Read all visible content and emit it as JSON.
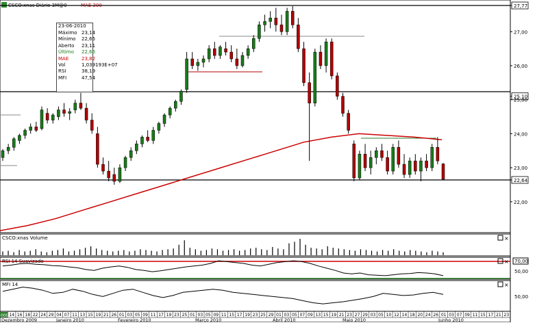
{
  "header": {
    "instrument": "CSCO:xnas Diário 3M@0",
    "overlay_label": "MAE 200",
    "icon": "chart-window-icon"
  },
  "info_box": {
    "date": "23-06-2010",
    "rows": [
      {
        "label": "Máximo",
        "value": "23,14",
        "color": "#000000"
      },
      {
        "label": "Mínimo",
        "value": "22,65",
        "color": "#000000"
      },
      {
        "label": "Aberto",
        "value": "23,11",
        "color": "#000000"
      },
      {
        "label": "Último",
        "value": "22,66",
        "color": "#1a7a1a"
      },
      {
        "label": "MAE",
        "value": "23,82",
        "color": "#cc0000"
      },
      {
        "label": "Vol",
        "value": "1,039193E+07",
        "color": "#000000"
      },
      {
        "label": "RSI",
        "value": "38,19",
        "color": "#000000"
      },
      {
        "label": "MFI",
        "value": "47,54",
        "color": "#000000"
      }
    ]
  },
  "panels": {
    "volume_title": "CSCO:xnas Volume",
    "rsi_title": "RSI 14 Suavizado",
    "mfi_title": "MFI 14",
    "rsi_level_label": "70,00",
    "rsi_mid_label": "50,00",
    "mfi_mid_label": "50,00"
  },
  "price_axis": {
    "labels": [
      "27,77",
      "27,00",
      "26,00",
      "25,10",
      "25,00",
      "24,00",
      "23,00",
      "22,64",
      "22,00"
    ],
    "top_highlight": "27,77",
    "hl_1": "25,10",
    "hl_2": "22,64"
  },
  "time_axis": {
    "days": [
      "09",
      "14",
      "16",
      "18",
      "22",
      "24",
      "29",
      "04",
      "07",
      "11",
      "13",
      "15",
      "19",
      "21",
      "26",
      "01",
      "03",
      "05",
      "09",
      "11",
      "17",
      "19",
      "23",
      "25",
      "01",
      "03",
      "05",
      "09",
      "11",
      "15",
      "17",
      "19",
      "23",
      "25",
      "29",
      "01",
      "03",
      "05",
      "07",
      "09",
      "13",
      "15",
      "19",
      "21",
      "23",
      "27",
      "29",
      "03",
      "05",
      "10",
      "12",
      "14",
      "18",
      "20",
      "24",
      "26",
      "01",
      "03",
      "07",
      "09",
      "11",
      "15",
      "17",
      "21",
      "23"
    ],
    "months": [
      "Dezembro 2009",
      "Janeiro 2010",
      "Fevereiro 2010",
      "Março 2010",
      "Abril 2010",
      "Maio 2010",
      "Junho 2010"
    ],
    "first_day": "009"
  },
  "colors": {
    "up": "#1a7a1a",
    "down": "#b00000",
    "mae": "#cc0000",
    "rsi_line": "#cc0000",
    "mfi_line": "#2e7d2e"
  },
  "chart_data": {
    "type": "candlestick",
    "title": "CSCO:xnas Diário 3M@0",
    "ylim": [
      21.0,
      27.8
    ],
    "horizontal_lines": [
      25.1,
      22.64
    ],
    "mae_200": [
      21.15,
      21.3,
      21.5,
      21.75,
      22.0,
      22.25,
      22.5,
      22.75,
      23.0,
      23.25,
      23.5,
      23.75,
      23.9,
      24.0,
      23.95,
      23.9,
      23.82
    ],
    "candles": [
      {
        "o": 23.3,
        "h": 23.55,
        "l": 23.2,
        "c": 23.5
      },
      {
        "o": 23.5,
        "h": 23.7,
        "l": 23.4,
        "c": 23.6
      },
      {
        "o": 23.6,
        "h": 23.9,
        "l": 23.5,
        "c": 23.85
      },
      {
        "o": 23.8,
        "h": 24.0,
        "l": 23.7,
        "c": 23.95
      },
      {
        "o": 23.95,
        "h": 24.15,
        "l": 23.85,
        "c": 24.1
      },
      {
        "o": 24.1,
        "h": 24.3,
        "l": 24.0,
        "c": 24.2
      },
      {
        "o": 24.2,
        "h": 24.35,
        "l": 24.05,
        "c": 24.1
      },
      {
        "o": 24.15,
        "h": 24.8,
        "l": 24.1,
        "c": 24.7
      },
      {
        "o": 24.6,
        "h": 24.75,
        "l": 24.3,
        "c": 24.4
      },
      {
        "o": 24.4,
        "h": 24.6,
        "l": 24.3,
        "c": 24.55
      },
      {
        "o": 24.5,
        "h": 24.8,
        "l": 24.4,
        "c": 24.7
      },
      {
        "o": 24.7,
        "h": 24.9,
        "l": 24.5,
        "c": 24.6
      },
      {
        "o": 24.6,
        "h": 24.75,
        "l": 24.4,
        "c": 24.65
      },
      {
        "o": 24.7,
        "h": 25.0,
        "l": 24.6,
        "c": 24.9
      },
      {
        "o": 24.9,
        "h": 25.2,
        "l": 24.7,
        "c": 24.75
      },
      {
        "o": 24.75,
        "h": 24.9,
        "l": 24.3,
        "c": 24.4
      },
      {
        "o": 24.4,
        "h": 24.6,
        "l": 24.0,
        "c": 24.1
      },
      {
        "o": 24.0,
        "h": 24.2,
        "l": 23.0,
        "c": 23.1
      },
      {
        "o": 23.1,
        "h": 23.3,
        "l": 22.8,
        "c": 22.9
      },
      {
        "o": 22.9,
        "h": 23.2,
        "l": 22.6,
        "c": 22.7
      },
      {
        "o": 22.8,
        "h": 23.0,
        "l": 22.5,
        "c": 22.6
      },
      {
        "o": 22.6,
        "h": 23.1,
        "l": 22.55,
        "c": 23.0
      },
      {
        "o": 23.0,
        "h": 23.35,
        "l": 22.9,
        "c": 23.3
      },
      {
        "o": 23.3,
        "h": 23.6,
        "l": 23.2,
        "c": 23.5
      },
      {
        "o": 23.5,
        "h": 23.8,
        "l": 23.4,
        "c": 23.7
      },
      {
        "o": 23.7,
        "h": 23.95,
        "l": 23.6,
        "c": 23.9
      },
      {
        "o": 23.9,
        "h": 24.1,
        "l": 23.75,
        "c": 23.8
      },
      {
        "o": 23.8,
        "h": 24.2,
        "l": 23.7,
        "c": 24.1
      },
      {
        "o": 24.1,
        "h": 24.35,
        "l": 24.0,
        "c": 24.3
      },
      {
        "o": 24.3,
        "h": 24.6,
        "l": 24.2,
        "c": 24.55
      },
      {
        "o": 24.55,
        "h": 24.8,
        "l": 24.45,
        "c": 24.75
      },
      {
        "o": 24.75,
        "h": 25.0,
        "l": 24.65,
        "c": 24.95
      },
      {
        "o": 24.95,
        "h": 25.3,
        "l": 24.85,
        "c": 25.25
      },
      {
        "o": 25.3,
        "h": 26.4,
        "l": 25.2,
        "c": 26.2
      },
      {
        "o": 26.2,
        "h": 26.4,
        "l": 25.9,
        "c": 26.0
      },
      {
        "o": 26.0,
        "h": 26.2,
        "l": 25.85,
        "c": 26.1
      },
      {
        "o": 26.1,
        "h": 26.3,
        "l": 25.95,
        "c": 26.2
      },
      {
        "o": 26.2,
        "h": 26.6,
        "l": 26.1,
        "c": 26.5
      },
      {
        "o": 26.5,
        "h": 26.7,
        "l": 26.2,
        "c": 26.3
      },
      {
        "o": 26.3,
        "h": 26.6,
        "l": 26.2,
        "c": 26.55
      },
      {
        "o": 26.5,
        "h": 26.7,
        "l": 26.3,
        "c": 26.4
      },
      {
        "o": 26.4,
        "h": 26.6,
        "l": 26.1,
        "c": 26.2
      },
      {
        "o": 26.2,
        "h": 26.5,
        "l": 25.9,
        "c": 26.0
      },
      {
        "o": 26.0,
        "h": 26.4,
        "l": 25.95,
        "c": 26.3
      },
      {
        "o": 26.3,
        "h": 26.6,
        "l": 26.2,
        "c": 26.5
      },
      {
        "o": 26.5,
        "h": 26.9,
        "l": 26.4,
        "c": 26.8
      },
      {
        "o": 26.8,
        "h": 27.3,
        "l": 26.7,
        "c": 27.2
      },
      {
        "o": 27.2,
        "h": 27.5,
        "l": 27.0,
        "c": 27.3
      },
      {
        "o": 27.3,
        "h": 27.6,
        "l": 27.1,
        "c": 27.4
      },
      {
        "o": 27.4,
        "h": 27.7,
        "l": 27.0,
        "c": 27.2
      },
      {
        "o": 27.2,
        "h": 27.5,
        "l": 26.9,
        "c": 27.0
      },
      {
        "o": 27.0,
        "h": 27.7,
        "l": 26.9,
        "c": 27.6
      },
      {
        "o": 27.6,
        "h": 27.75,
        "l": 27.1,
        "c": 27.2
      },
      {
        "o": 27.2,
        "h": 27.4,
        "l": 26.4,
        "c": 26.5
      },
      {
        "o": 26.5,
        "h": 26.7,
        "l": 25.4,
        "c": 25.5
      },
      {
        "o": 25.5,
        "h": 25.8,
        "l": 23.2,
        "c": 24.9
      },
      {
        "o": 24.9,
        "h": 26.5,
        "l": 24.8,
        "c": 26.4
      },
      {
        "o": 26.4,
        "h": 26.6,
        "l": 25.9,
        "c": 26.0
      },
      {
        "o": 26.0,
        "h": 26.8,
        "l": 25.8,
        "c": 26.7
      },
      {
        "o": 26.7,
        "h": 26.8,
        "l": 25.6,
        "c": 25.7
      },
      {
        "o": 25.7,
        "h": 25.8,
        "l": 25.0,
        "c": 25.1
      },
      {
        "o": 25.1,
        "h": 25.2,
        "l": 24.5,
        "c": 24.6
      },
      {
        "o": 24.6,
        "h": 24.7,
        "l": 24.0,
        "c": 24.1
      },
      {
        "o": 23.7,
        "h": 23.8,
        "l": 22.6,
        "c": 22.7
      },
      {
        "o": 22.7,
        "h": 23.5,
        "l": 22.65,
        "c": 23.4
      },
      {
        "o": 23.4,
        "h": 23.7,
        "l": 22.9,
        "c": 23.0
      },
      {
        "o": 23.0,
        "h": 23.5,
        "l": 22.8,
        "c": 23.3
      },
      {
        "o": 23.3,
        "h": 23.6,
        "l": 23.1,
        "c": 23.5
      },
      {
        "o": 23.5,
        "h": 23.7,
        "l": 23.2,
        "c": 23.3
      },
      {
        "o": 23.3,
        "h": 23.5,
        "l": 22.8,
        "c": 22.9
      },
      {
        "o": 22.9,
        "h": 23.7,
        "l": 22.8,
        "c": 23.6
      },
      {
        "o": 23.6,
        "h": 23.8,
        "l": 23.0,
        "c": 23.1
      },
      {
        "o": 23.1,
        "h": 23.4,
        "l": 22.7,
        "c": 22.8
      },
      {
        "o": 22.8,
        "h": 23.3,
        "l": 22.7,
        "c": 23.2
      },
      {
        "o": 23.2,
        "h": 23.4,
        "l": 22.8,
        "c": 22.9
      },
      {
        "o": 22.9,
        "h": 23.3,
        "l": 22.6,
        "c": 23.2
      },
      {
        "o": 23.2,
        "h": 23.4,
        "l": 22.9,
        "c": 23.0
      },
      {
        "o": 23.0,
        "h": 23.7,
        "l": 22.9,
        "c": 23.6
      },
      {
        "o": 23.6,
        "h": 23.9,
        "l": 23.1,
        "c": 23.2
      },
      {
        "o": 23.11,
        "h": 23.14,
        "l": 22.65,
        "c": 22.66
      }
    ],
    "volume": [
      5,
      6,
      4,
      7,
      5,
      6,
      8,
      5,
      4,
      6,
      7,
      9,
      5,
      6,
      8,
      10,
      12,
      9,
      7,
      6,
      5,
      6,
      7,
      5,
      6,
      8,
      7,
      6,
      5,
      7,
      8,
      9,
      14,
      20,
      10,
      8,
      6,
      7,
      9,
      8,
      6,
      7,
      8,
      6,
      7,
      9,
      10,
      8,
      7,
      11,
      9,
      8,
      16,
      18,
      22,
      14,
      10,
      9,
      8,
      12,
      10,
      9,
      8,
      7,
      6,
      8,
      7,
      6,
      5,
      7,
      6,
      8,
      6,
      5,
      7,
      6,
      5,
      4,
      6,
      5,
      4
    ],
    "rsi": [
      60,
      62,
      65,
      66,
      64,
      63,
      61,
      60,
      58,
      56,
      52,
      50,
      55,
      58,
      60,
      57,
      52,
      50,
      47,
      49,
      52,
      55,
      58,
      60,
      62,
      66,
      72,
      70,
      68,
      66,
      62,
      60,
      64,
      68,
      70,
      72,
      70,
      66,
      60,
      55,
      50,
      44,
      42,
      44,
      40,
      39,
      38,
      40,
      42,
      43,
      45,
      44,
      42,
      38
    ],
    "mfi": [
      62,
      66,
      70,
      68,
      64,
      58,
      60,
      66,
      62,
      56,
      52,
      58,
      64,
      66,
      60,
      54,
      50,
      54,
      60,
      62,
      64,
      66,
      64,
      60,
      58,
      56,
      54,
      52,
      50,
      48,
      44,
      40,
      38,
      40,
      42,
      45,
      48,
      52,
      58,
      56,
      54,
      55,
      58,
      60,
      56
    ]
  }
}
